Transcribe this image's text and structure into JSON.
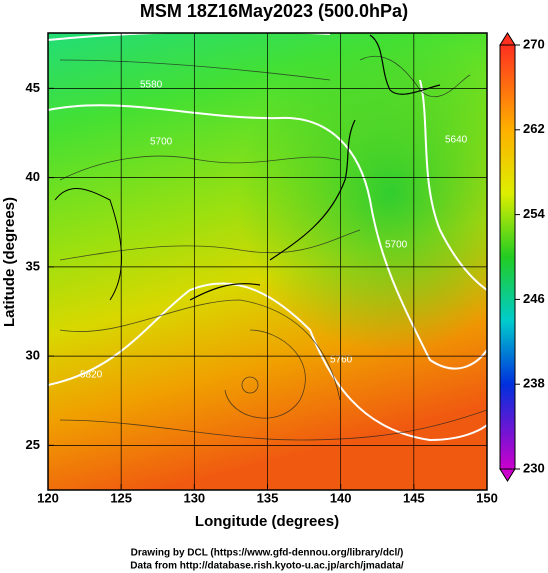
{
  "chart_data": {
    "type": "map",
    "title": "MSM 18Z16May2023 (500.0hPa)",
    "xlabel": "Longitude (degrees)",
    "ylabel": "Latitude  (degrees)",
    "xlim": [
      120,
      150
    ],
    "ylim": [
      22.5,
      48.1
    ],
    "xticks": [
      120,
      125,
      130,
      135,
      140,
      145,
      150
    ],
    "yticks": [
      25,
      30,
      35,
      40,
      45
    ],
    "grid": true,
    "colorbar": {
      "lim": [
        230,
        270
      ],
      "ticks": [
        230,
        238,
        246,
        254,
        262,
        270
      ]
    },
    "contour_labels": [
      "5580",
      "5700",
      "5820",
      "5760",
      "5640",
      "5700"
    ]
  },
  "credits": [
    "Drawing by DCL (https://www.gfd-dennou.org/library/dcl/)",
    "Data from http://database.rish.kyoto-u.ac.jp/arch/jmadata/"
  ]
}
